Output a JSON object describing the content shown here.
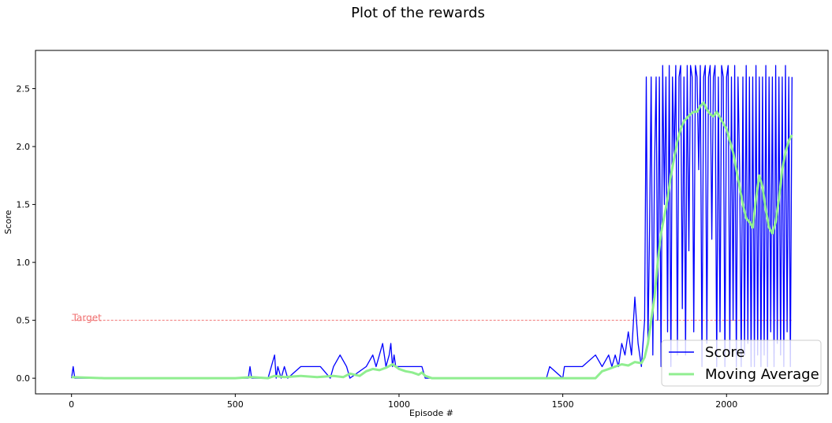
{
  "chart_data": {
    "type": "line",
    "title": "Plot of the rewards",
    "xlabel": "Episode #",
    "ylabel": "Score",
    "xlim": [
      -110,
      2310
    ],
    "ylim": [
      -0.135,
      2.83
    ],
    "xticks": [
      0,
      500,
      1000,
      1500,
      2000
    ],
    "yticks": [
      0.0,
      0.5,
      1.0,
      1.5,
      2.0,
      2.5
    ],
    "xtick_labels": [
      "0",
      "500",
      "1000",
      "1500",
      "2000"
    ],
    "ytick_labels": [
      "0.0",
      "0.5",
      "1.0",
      "1.5",
      "2.0",
      "2.5"
    ],
    "grid": false,
    "legend_position": "lower-right",
    "annotations": [
      {
        "text": "Target",
        "y": 0.5,
        "color": "#f07070",
        "style": "dashed"
      }
    ],
    "series": [
      {
        "name": "Score",
        "color": "#0000ff",
        "x": [
          0,
          5,
          10,
          540,
          545,
          550,
          600,
          620,
          625,
          630,
          640,
          650,
          660,
          700,
          760,
          790,
          800,
          820,
          840,
          850,
          900,
          920,
          930,
          940,
          950,
          960,
          970,
          975,
          980,
          985,
          990,
          1000,
          1010,
          1020,
          1040,
          1060,
          1070,
          1080,
          1450,
          1460,
          1500,
          1505,
          1510,
          1550,
          1560,
          1600,
          1620,
          1640,
          1650,
          1660,
          1670,
          1680,
          1690,
          1700,
          1710,
          1720,
          1730,
          1735,
          1740,
          1750,
          1755,
          1760,
          1765,
          1770,
          1775,
          1780,
          1785,
          1790,
          1795,
          1800,
          1805,
          1810,
          1815,
          1820,
          1825,
          1830,
          1835,
          1840,
          1845,
          1850,
          1855,
          1860,
          1865,
          1870,
          1875,
          1880,
          1885,
          1890,
          1895,
          1900,
          1905,
          1910,
          1915,
          1920,
          1925,
          1930,
          1935,
          1940,
          1945,
          1950,
          1955,
          1960,
          1965,
          1970,
          1975,
          1980,
          1985,
          1990,
          1995,
          2000,
          2005,
          2010,
          2015,
          2020,
          2025,
          2030,
          2035,
          2040,
          2045,
          2050,
          2055,
          2060,
          2065,
          2070,
          2075,
          2080,
          2085,
          2090,
          2095,
          2100,
          2105,
          2110,
          2115,
          2120,
          2125,
          2130,
          2135,
          2140,
          2145,
          2150,
          2155,
          2160,
          2165,
          2170,
          2175,
          2180,
          2185,
          2190,
          2195,
          2200
        ],
        "y": [
          0,
          0.1,
          0,
          0,
          0.1,
          0,
          0,
          0.2,
          0,
          0.1,
          0,
          0.1,
          0,
          0.1,
          0.1,
          0,
          0.1,
          0.2,
          0.1,
          0,
          0.1,
          0.2,
          0.1,
          0.2,
          0.3,
          0.1,
          0.2,
          0.3,
          0.1,
          0.2,
          0.1,
          0.1,
          0.1,
          0.1,
          0.1,
          0.1,
          0.1,
          0,
          0,
          0.1,
          0,
          0.1,
          0.1,
          0.1,
          0.1,
          0.2,
          0.1,
          0.2,
          0.1,
          0.2,
          0.1,
          0.3,
          0.2,
          0.4,
          0.2,
          0.7,
          0.3,
          0.2,
          0.1,
          0.5,
          2.6,
          0.3,
          1.3,
          2.6,
          0.2,
          1.8,
          2.6,
          0.5,
          2.6,
          0.1,
          2.7,
          1.5,
          2.6,
          0.4,
          2.7,
          0.1,
          2.6,
          1.9,
          2.7,
          0.2,
          2.6,
          2.7,
          0.6,
          2.6,
          0.2,
          2.7,
          1.1,
          2.7,
          2.6,
          0.4,
          2.7,
          2.6,
          1.8,
          2.7,
          0.1,
          2.6,
          2.7,
          0.3,
          2.6,
          2.7,
          1.2,
          2.6,
          2.7,
          0.1,
          2.6,
          0.4,
          2.7,
          2.6,
          0.1,
          2.6,
          2.7,
          0.2,
          2.6,
          0.5,
          2.7,
          0.1,
          2.6,
          1.8,
          0.1,
          2.6,
          0.2,
          2.7,
          0.3,
          2.6,
          0.1,
          2.6,
          0.1,
          2.7,
          0.2,
          2.6,
          0.1,
          2.6,
          0.2,
          2.7,
          0.1,
          2.6,
          0.4,
          2.6,
          0.1,
          2.7,
          0.3,
          2.6,
          0.2,
          2.6,
          0.1,
          2.7,
          0.4,
          2.6,
          0.1,
          2.6
        ]
      },
      {
        "name": "Moving Average",
        "color": "#90ee90",
        "x": [
          0,
          100,
          200,
          300,
          400,
          500,
          550,
          600,
          620,
          650,
          700,
          750,
          800,
          830,
          850,
          880,
          900,
          920,
          940,
          960,
          980,
          990,
          1000,
          1020,
          1040,
          1060,
          1070,
          1080,
          1100,
          1200,
          1300,
          1400,
          1500,
          1550,
          1600,
          1620,
          1640,
          1660,
          1680,
          1700,
          1720,
          1740,
          1750,
          1760,
          1770,
          1780,
          1790,
          1800,
          1810,
          1820,
          1830,
          1840,
          1850,
          1860,
          1870,
          1880,
          1890,
          1900,
          1910,
          1920,
          1930,
          1940,
          1950,
          1960,
          1970,
          1980,
          1990,
          2000,
          2010,
          2020,
          2030,
          2040,
          2050,
          2060,
          2070,
          2080,
          2090,
          2100,
          2110,
          2120,
          2130,
          2140,
          2150,
          2160,
          2170,
          2180,
          2190,
          2200
        ],
        "y": [
          0.01,
          0,
          0,
          0,
          0,
          0,
          0.01,
          0,
          0.02,
          0.01,
          0.02,
          0.01,
          0.02,
          0.01,
          0.04,
          0.02,
          0.06,
          0.08,
          0.07,
          0.09,
          0.12,
          0.1,
          0.08,
          0.06,
          0.05,
          0.03,
          0.05,
          0.02,
          0,
          0,
          0,
          0,
          0,
          0,
          0,
          0.06,
          0.08,
          0.1,
          0.12,
          0.11,
          0.14,
          0.13,
          0.18,
          0.3,
          0.5,
          0.7,
          1.0,
          1.25,
          1.4,
          1.55,
          1.75,
          1.9,
          2.05,
          2.15,
          2.22,
          2.25,
          2.28,
          2.3,
          2.3,
          2.35,
          2.38,
          2.32,
          2.28,
          2.26,
          2.3,
          2.25,
          2.2,
          2.15,
          2.05,
          1.95,
          1.8,
          1.65,
          1.5,
          1.38,
          1.35,
          1.3,
          1.55,
          1.75,
          1.65,
          1.45,
          1.3,
          1.25,
          1.35,
          1.55,
          1.8,
          1.95,
          2.05,
          2.1
        ]
      }
    ]
  }
}
